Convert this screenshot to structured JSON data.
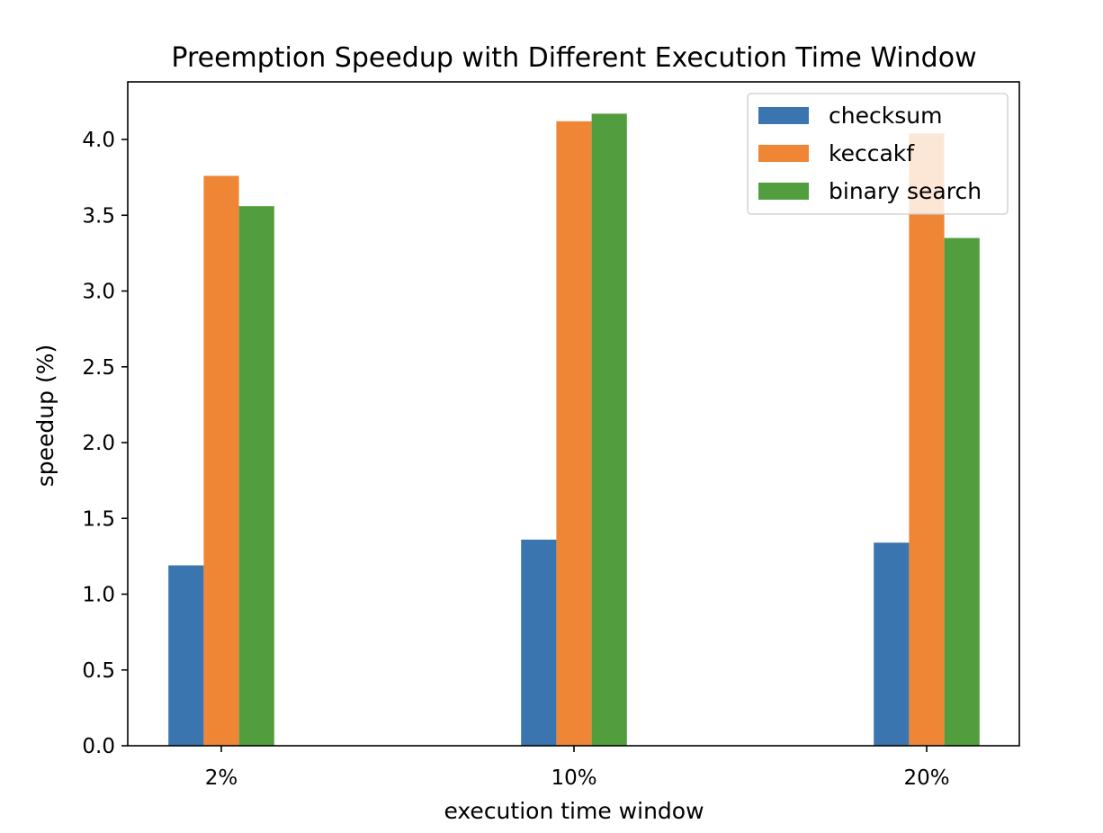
{
  "chart_data": {
    "type": "bar",
    "title": "Preemption Speedup with Different Execution Time Window",
    "xlabel": "execution time window",
    "ylabel": "speedup (%)",
    "categories": [
      "2%",
      "10%",
      "20%"
    ],
    "series": [
      {
        "name": "checksum",
        "color": "#3a75af",
        "values": [
          1.19,
          1.36,
          1.34
        ]
      },
      {
        "name": "keccakf",
        "color": "#ef8636",
        "values": [
          3.76,
          4.12,
          4.04
        ]
      },
      {
        "name": "binary search",
        "color": "#529e3f",
        "values": [
          3.56,
          4.17,
          3.35
        ]
      }
    ],
    "ylim": [
      0,
      4.38
    ],
    "yticks": [
      0.0,
      0.5,
      1.0,
      1.5,
      2.0,
      2.5,
      3.0,
      3.5,
      4.0
    ],
    "ytick_labels": [
      "0.0",
      "0.5",
      "1.0",
      "1.5",
      "2.0",
      "2.5",
      "3.0",
      "3.5",
      "4.0"
    ],
    "grid": false,
    "legend_position": "top-right"
  }
}
